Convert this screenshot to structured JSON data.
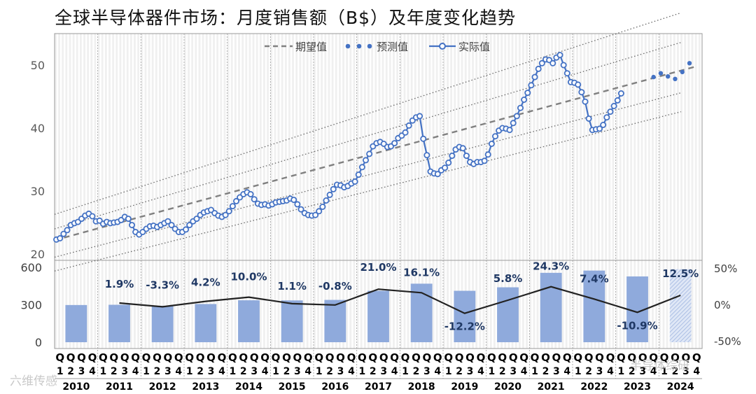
{
  "title": "全球半导体器件市场：月度销售额（B$）及年度变化趋势",
  "watermarks": {
    "left": "六维传感",
    "right": "半导体综研"
  },
  "chart_data": [
    {
      "type": "line",
      "name": "monthly-sales",
      "x_unit": "month",
      "start": "2010-01",
      "ylim": [
        19,
        55
      ],
      "yticks": [
        20,
        30,
        40,
        50
      ],
      "grid": "vertical monthly stripes",
      "legend": {
        "position": "top-center",
        "entries": [
          "期望值",
          "预测值",
          "实际值"
        ]
      },
      "series": [
        {
          "name": "实际值",
          "color": "#4472C4",
          "values": [
            22.3,
            22.5,
            23.2,
            23.8,
            24.6,
            24.9,
            25.1,
            25.6,
            26.1,
            26.4,
            26.0,
            25.2,
            25.3,
            24.8,
            25.1,
            24.9,
            25.0,
            25.1,
            25.4,
            25.9,
            25.6,
            24.6,
            23.5,
            23.1,
            23.5,
            24.0,
            24.4,
            24.5,
            24.3,
            24.6,
            24.9,
            25.2,
            24.6,
            24.0,
            23.5,
            23.5,
            23.9,
            24.6,
            25.2,
            25.6,
            26.2,
            26.6,
            26.8,
            27.0,
            26.5,
            26.1,
            25.9,
            26.2,
            26.8,
            27.6,
            28.4,
            29.0,
            29.5,
            29.8,
            29.5,
            28.7,
            28.0,
            27.8,
            27.9,
            27.7,
            27.9,
            28.2,
            28.3,
            28.4,
            28.5,
            28.8,
            28.6,
            27.9,
            27.1,
            26.5,
            26.2,
            26.1,
            26.2,
            26.8,
            27.5,
            28.5,
            29.4,
            30.3,
            31.0,
            30.9,
            30.6,
            30.8,
            31.2,
            31.5,
            32.6,
            33.8,
            34.9,
            35.9,
            37.1,
            37.6,
            37.8,
            37.5,
            37.0,
            37.1,
            37.6,
            38.4,
            38.8,
            39.3,
            40.4,
            41.2,
            41.7,
            41.9,
            38.3,
            35.7,
            33.1,
            32.8,
            32.7,
            33.3,
            33.7,
            34.5,
            35.6,
            36.6,
            37.0,
            36.8,
            35.6,
            34.6,
            34.3,
            34.6,
            34.6,
            34.8,
            35.8,
            37.5,
            38.7,
            39.6,
            40.0,
            39.9,
            39.7,
            40.8,
            41.9,
            43.2,
            44.5,
            45.6,
            46.8,
            48.1,
            49.4,
            50.3,
            50.9,
            50.8,
            50.3,
            51.2,
            51.6,
            50.0,
            48.7,
            47.3,
            47.2,
            46.9,
            45.7,
            44.2,
            41.5,
            39.7,
            39.8,
            39.9,
            40.5,
            41.7,
            42.6,
            43.5,
            44.4,
            45.5
          ]
        },
        {
          "name": "预测值",
          "color": "#4472C4",
          "start_index": 167,
          "values": [
            48.1,
            48.7,
            48.2,
            47.8,
            48.9,
            50.3
          ]
        },
        {
          "name": "期望值",
          "color": "#808080",
          "dash": true,
          "start_value": 22.2,
          "end_value": 49.8
        }
      ],
      "bands": {
        "color": "#666666",
        "upper_outer": [
          26.3,
          58.3
        ],
        "upper_inner": [
          24.0,
          53.6
        ],
        "lower_inner": [
          19.5,
          45.6
        ],
        "lower_outer": [
          17.3,
          42.6
        ]
      }
    },
    {
      "type": "bar",
      "name": "annual-sales",
      "categories": [
        "2010",
        "2011",
        "2012",
        "2013",
        "2014",
        "2015",
        "2016",
        "2017",
        "2018",
        "2019",
        "2020",
        "2021",
        "2022",
        "2023",
        "2024"
      ],
      "values": [
        298,
        300,
        292,
        306,
        336,
        335,
        339,
        412,
        469,
        412,
        440,
        556,
        574,
        527,
        585
      ],
      "last_bar_hatched": true,
      "ylim": [
        0,
        600
      ],
      "yticks": [
        0,
        300,
        600
      ],
      "color": "#8FAADC"
    },
    {
      "type": "line",
      "name": "annual-change",
      "categories": [
        "2011",
        "2012",
        "2013",
        "2014",
        "2015",
        "2016",
        "2017",
        "2018",
        "2019",
        "2020",
        "2021",
        "2022",
        "2023",
        "2024"
      ],
      "values": [
        1.9,
        -3.3,
        4.2,
        10.0,
        1.1,
        -0.8,
        21.0,
        16.1,
        -12.2,
        5.8,
        24.3,
        7.4,
        -10.9,
        12.5
      ],
      "labels": [
        "1.9%",
        "-3.3%",
        "4.2%",
        "10.0%",
        "1.1%",
        "-0.8%",
        "21.0%",
        "16.1%",
        "-12.2%",
        "5.8%",
        "24.3%",
        "7.4%",
        "-10.9%",
        "12.5%"
      ],
      "y2lim": [
        -50,
        50
      ],
      "y2ticks": [
        "50%",
        "0%",
        "-50%"
      ],
      "color": "#222222"
    }
  ],
  "x_axis": {
    "quarter_letter": "Q",
    "quarter_numbers": [
      "1",
      "2",
      "3",
      "4"
    ],
    "years": [
      "2010",
      "2011",
      "2012",
      "2013",
      "2014",
      "2015",
      "2016",
      "2017",
      "2018",
      "2019",
      "2020",
      "2021",
      "2022",
      "2023",
      "2024"
    ]
  }
}
